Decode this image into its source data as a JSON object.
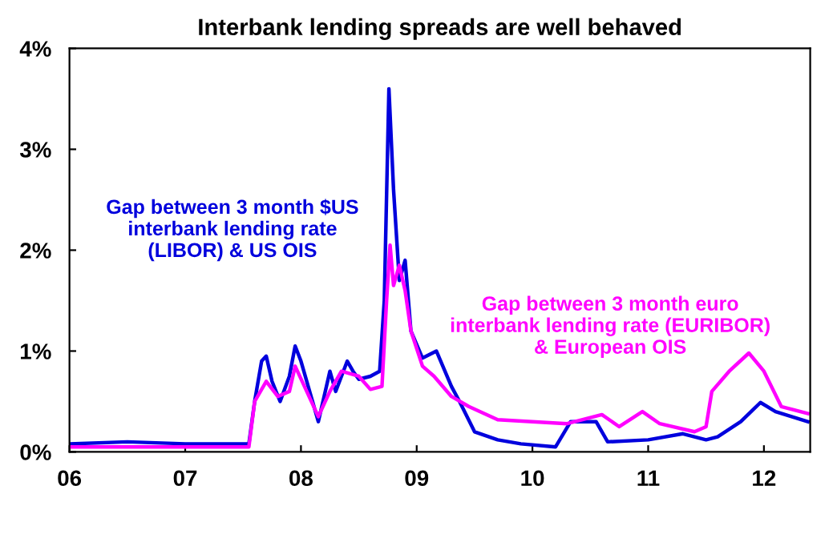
{
  "chart_data": {
    "type": "line",
    "title": "Interbank lending spreads are well behaved",
    "xlim": [
      2006,
      2012.4
    ],
    "xticks": [
      {
        "value": 2006,
        "label": "06"
      },
      {
        "value": 2007,
        "label": "07"
      },
      {
        "value": 2008,
        "label": "08"
      },
      {
        "value": 2009,
        "label": "09"
      },
      {
        "value": 2010,
        "label": "10"
      },
      {
        "value": 2011,
        "label": "11"
      },
      {
        "value": 2012,
        "label": "12"
      }
    ],
    "ylim": [
      0,
      4
    ],
    "yticks": [
      {
        "value": 0,
        "label": "0%"
      },
      {
        "value": 1,
        "label": "1%"
      },
      {
        "value": 2,
        "label": "2%"
      },
      {
        "value": 3,
        "label": "3%"
      },
      {
        "value": 4,
        "label": "4%"
      }
    ],
    "grid": false,
    "legend": false,
    "series": [
      {
        "name": "Gap between 3 month $US\ninterbank lending rate\n(LIBOR) & US OIS",
        "color": "#0000dd",
        "x": [
          2006.0,
          2006.5,
          2007.0,
          2007.55,
          2007.6,
          2007.66,
          2007.7,
          2007.75,
          2007.82,
          2007.9,
          2007.95,
          2008.0,
          2008.1,
          2008.15,
          2008.2,
          2008.25,
          2008.3,
          2008.35,
          2008.4,
          2008.45,
          2008.5,
          2008.6,
          2008.68,
          2008.72,
          2008.76,
          2008.8,
          2008.85,
          2008.9,
          2008.95,
          2009.05,
          2009.17,
          2009.3,
          2009.37,
          2009.5,
          2009.7,
          2009.9,
          2010.2,
          2010.33,
          2010.45,
          2010.55,
          2010.65,
          2011.0,
          2011.3,
          2011.5,
          2011.6,
          2011.8,
          2011.97,
          2012.1,
          2012.38
        ],
        "values": [
          0.08,
          0.1,
          0.08,
          0.08,
          0.5,
          0.9,
          0.95,
          0.7,
          0.5,
          0.75,
          1.05,
          0.9,
          0.5,
          0.3,
          0.55,
          0.8,
          0.6,
          0.75,
          0.9,
          0.8,
          0.72,
          0.75,
          0.8,
          1.5,
          3.6,
          2.6,
          1.7,
          1.9,
          1.2,
          0.93,
          1.0,
          0.65,
          0.5,
          0.2,
          0.12,
          0.08,
          0.05,
          0.3,
          0.3,
          0.3,
          0.1,
          0.12,
          0.18,
          0.12,
          0.15,
          0.3,
          0.49,
          0.4,
          0.3
        ]
      },
      {
        "name": "Gap between 3 month euro\ninterbank lending rate (EURIBOR)\n& European OIS",
        "color": "#ff00ff",
        "x": [
          2006.0,
          2007.55,
          2007.6,
          2007.7,
          2007.8,
          2007.9,
          2007.95,
          2008.05,
          2008.15,
          2008.25,
          2008.35,
          2008.5,
          2008.6,
          2008.7,
          2008.74,
          2008.77,
          2008.8,
          2008.85,
          2008.9,
          2008.95,
          2009.05,
          2009.15,
          2009.3,
          2009.45,
          2009.7,
          2010.0,
          2010.3,
          2010.6,
          2010.75,
          2010.95,
          2011.1,
          2011.4,
          2011.5,
          2011.55,
          2011.7,
          2011.87,
          2012.0,
          2012.15,
          2012.38
        ],
        "values": [
          0.05,
          0.05,
          0.5,
          0.7,
          0.55,
          0.6,
          0.85,
          0.6,
          0.35,
          0.6,
          0.8,
          0.75,
          0.62,
          0.65,
          1.5,
          2.05,
          1.65,
          1.85,
          1.6,
          1.2,
          0.85,
          0.75,
          0.55,
          0.45,
          0.32,
          0.3,
          0.28,
          0.37,
          0.25,
          0.4,
          0.28,
          0.2,
          0.25,
          0.6,
          0.8,
          0.98,
          0.8,
          0.45,
          0.38
        ]
      }
    ]
  }
}
